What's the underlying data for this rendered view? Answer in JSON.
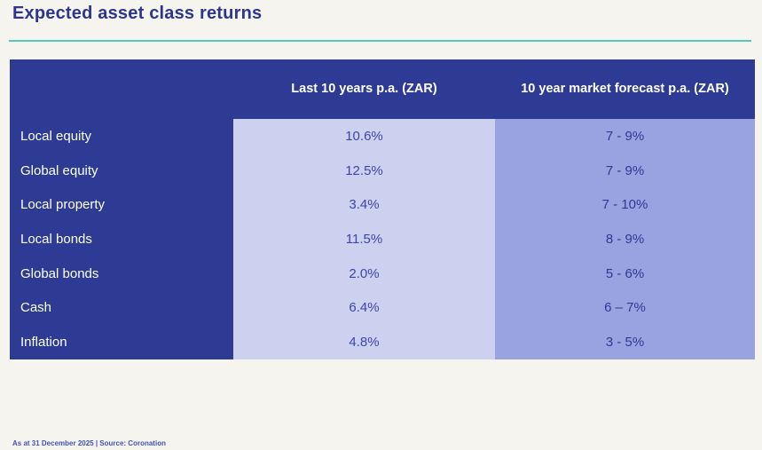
{
  "page": {
    "title": "Expected asset class returns"
  },
  "colors": {
    "background": "#f5f4ee",
    "title_navy": "#2c3690",
    "accent_teal": "#52cbba",
    "header_blue": "#2e3b94",
    "col_last10_bg": "#cdd1f0",
    "col_forecast_bg": "#99a3e2",
    "value_text_blue": "#3c45a8"
  },
  "table": {
    "columns": [
      "Last 10 years p.a. (ZAR)",
      "10 year market forecast p.a. (ZAR)"
    ],
    "rows": [
      {
        "label": "Local equity",
        "last10": "10.6%",
        "forecast": "7 - 9%"
      },
      {
        "label": "Global equity",
        "last10": "12.5%",
        "forecast": "7 - 9%"
      },
      {
        "label": "Local property",
        "last10": "3.4%",
        "forecast": "7 - 10%"
      },
      {
        "label": "Local bonds",
        "last10": "11.5%",
        "forecast": "8 - 9%"
      },
      {
        "label": "Global bonds",
        "last10": "2.0%",
        "forecast": "5 - 6%"
      },
      {
        "label": "Cash",
        "last10": "6.4%",
        "forecast": "6 – 7%"
      },
      {
        "label": "Inflation",
        "last10": "4.8%",
        "forecast": "3 - 5%"
      }
    ]
  },
  "footer": {
    "text": "As at 31 December 2025 | Source: Coronation"
  },
  "chart_data": {
    "type": "table",
    "title": "Expected asset class returns",
    "categories": [
      "Local equity",
      "Global equity",
      "Local property",
      "Local bonds",
      "Global bonds",
      "Cash",
      "Inflation"
    ],
    "series": [
      {
        "name": "Last 10 years p.a. (ZAR)",
        "values": [
          "10.6%",
          "12.5%",
          "3.4%",
          "11.5%",
          "2.0%",
          "6.4%",
          "4.8%"
        ]
      },
      {
        "name": "10 year market forecast p.a. (ZAR)",
        "values": [
          "7 - 9%",
          "7 - 9%",
          "7 - 10%",
          "8 - 9%",
          "5 - 6%",
          "6 – 7%",
          "3 - 5%"
        ]
      }
    ],
    "footnote": "As at 31 December 2025 | Source: Coronation"
  }
}
